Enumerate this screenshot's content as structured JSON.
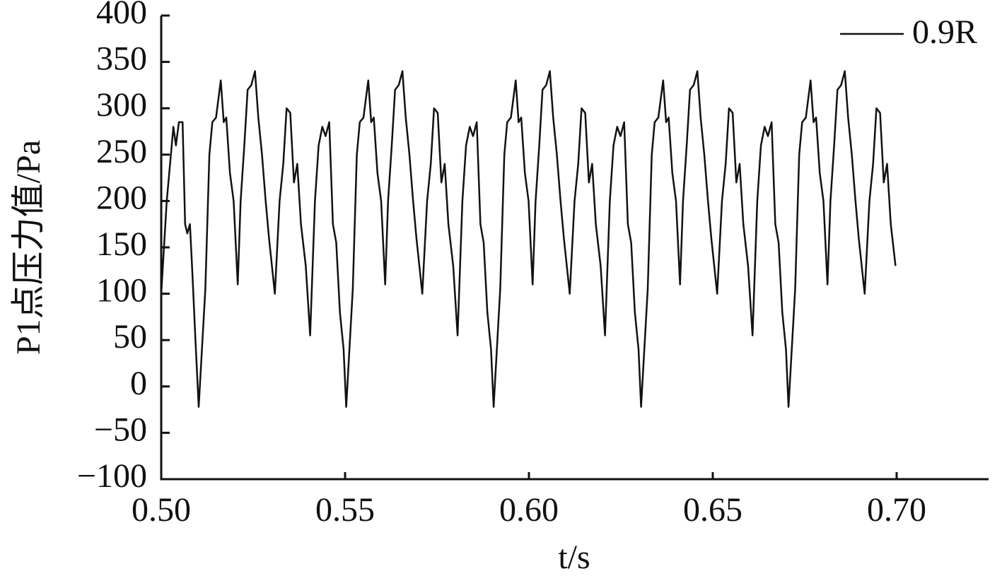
{
  "chart_data": {
    "type": "line",
    "ylabel": "P1点压力值/Pa",
    "xlabel": "t/s",
    "xlim": [
      0.5,
      0.725
    ],
    "ylim": [
      -100,
      400
    ],
    "xticks": [
      {
        "value": 0.5,
        "label": "0.50"
      },
      0.55,
      {
        "value": 0.6,
        "label": "0.60"
      },
      0.65,
      {
        "value": 0.7,
        "label": "0.70"
      }
    ],
    "yticks": [
      {
        "value": -100,
        "label": "−100"
      },
      {
        "value": -50,
        "label": "−50"
      },
      0,
      50,
      100,
      150,
      200,
      250,
      300,
      350,
      400
    ],
    "legend": "upper right",
    "x": [
      0.5,
      0.5015,
      0.5033,
      0.504,
      0.5048,
      0.5058,
      0.5065,
      0.5071,
      0.5078,
      0.5085,
      0.5093,
      0.5102,
      0.512,
      0.5131,
      0.5139,
      0.5149,
      0.5162,
      0.517,
      0.5177,
      0.5187,
      0.5197,
      0.5208,
      0.5216,
      0.5226,
      0.5235,
      0.5245,
      0.5255,
      0.5264,
      0.5274,
      0.5284,
      0.5293,
      0.5309,
      0.5322,
      0.5332,
      0.5341,
      0.5351,
      0.5361,
      0.537,
      0.538,
      0.5393,
      0.5405,
      0.5418,
      0.5428,
      0.5438,
      0.5447,
      0.5457,
      0.5467,
      0.5476,
      0.5486,
      0.5496,
      0.5503,
      0.5521,
      0.5532,
      0.554,
      0.555,
      0.5563,
      0.5571,
      0.5578,
      0.5588,
      0.5598,
      0.5609,
      0.5617,
      0.5627,
      0.5636,
      0.5646,
      0.5656,
      0.5665,
      0.5675,
      0.5685,
      0.5694,
      0.571,
      0.5723,
      0.5733,
      0.5742,
      0.5752,
      0.5762,
      0.5771,
      0.5781,
      0.5794,
      0.5806,
      0.5819,
      0.5829,
      0.5839,
      0.5848,
      0.5858,
      0.5868,
      0.5877,
      0.5887,
      0.5897,
      0.5904,
      0.5922,
      0.5933,
      0.5941,
      0.5951,
      0.5964,
      0.5972,
      0.5979,
      0.5989,
      0.5999,
      0.601,
      0.6018,
      0.6028,
      0.6037,
      0.6047,
      0.6057,
      0.6066,
      0.6076,
      0.6086,
      0.6095,
      0.6111,
      0.6124,
      0.6134,
      0.6143,
      0.6153,
      0.6163,
      0.6172,
      0.6182,
      0.6195,
      0.6207,
      0.622,
      0.623,
      0.624,
      0.6249,
      0.6259,
      0.6269,
      0.6278,
      0.6288,
      0.6298,
      0.6305,
      0.6323,
      0.6334,
      0.6342,
      0.6352,
      0.6365,
      0.6373,
      0.638,
      0.639,
      0.64,
      0.6411,
      0.6419,
      0.6429,
      0.6438,
      0.6448,
      0.6458,
      0.6467,
      0.6477,
      0.6487,
      0.6496,
      0.6512,
      0.6525,
      0.6535,
      0.6544,
      0.6554,
      0.6564,
      0.6573,
      0.6583,
      0.6596,
      0.6608,
      0.6621,
      0.6631,
      0.6641,
      0.665,
      0.666,
      0.667,
      0.6679,
      0.6689,
      0.6699,
      0.6706,
      0.6724,
      0.6735,
      0.6743,
      0.6753,
      0.6766,
      0.6774,
      0.6781,
      0.6791,
      0.6801,
      0.6812,
      0.682,
      0.683,
      0.6839,
      0.6849,
      0.6859,
      0.6868,
      0.6878,
      0.6888,
      0.6897,
      0.6913,
      0.6926,
      0.6936,
      0.6945,
      0.6955,
      0.6965,
      0.6974,
      0.6984,
      0.6997
    ],
    "series": [
      {
        "name": "0.9R",
        "color": "#111111",
        "values": [
          100,
          200,
          280,
          260,
          285,
          285,
          175,
          165,
          175,
          120,
          50,
          -22,
          105,
          250,
          285,
          290,
          330,
          285,
          290,
          230,
          200,
          110,
          200,
          260,
          320,
          325,
          340,
          290,
          250,
          200,
          160,
          100,
          200,
          240,
          300,
          295,
          220,
          240,
          175,
          130,
          55,
          200,
          260,
          280,
          270,
          285,
          175,
          155,
          80,
          40,
          -22,
          105,
          250,
          285,
          290,
          330,
          285,
          290,
          230,
          200,
          110,
          200,
          260,
          320,
          325,
          340,
          290,
          250,
          200,
          160,
          100,
          200,
          240,
          300,
          295,
          220,
          240,
          175,
          130,
          55,
          200,
          260,
          280,
          270,
          285,
          175,
          155,
          80,
          40,
          -22,
          105,
          250,
          285,
          290,
          330,
          285,
          290,
          230,
          200,
          110,
          200,
          260,
          320,
          325,
          340,
          290,
          250,
          200,
          160,
          100,
          200,
          240,
          300,
          295,
          220,
          240,
          175,
          130,
          55,
          200,
          260,
          280,
          270,
          285,
          175,
          155,
          80,
          40,
          -22,
          105,
          250,
          285,
          290,
          330,
          285,
          290,
          230,
          200,
          110,
          200,
          260,
          320,
          325,
          340,
          290,
          250,
          200,
          160,
          100,
          200,
          240,
          300,
          295,
          220,
          240,
          175,
          130,
          55,
          200,
          260,
          280,
          270,
          285,
          175,
          155,
          80,
          40,
          -22,
          105,
          250,
          285,
          290,
          330,
          285,
          290,
          230,
          200,
          110,
          200,
          260,
          320,
          325,
          340,
          290,
          250,
          200,
          160,
          100,
          200,
          240,
          300,
          295,
          220,
          240,
          175,
          130
        ]
      }
    ]
  }
}
